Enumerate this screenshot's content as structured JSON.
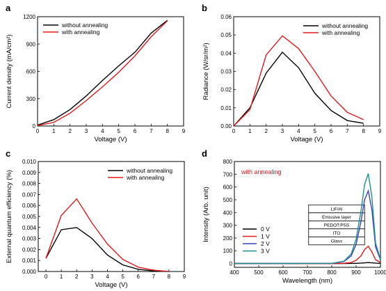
{
  "chart_data": [
    {
      "panel": "a",
      "type": "line",
      "xlabel": "Voltage (V)",
      "ylabel": "Current density (mA/cm²)",
      "xlim": [
        0,
        9
      ],
      "ylim": [
        0,
        1200
      ],
      "xticks": [
        0,
        1,
        2,
        3,
        4,
        5,
        6,
        7,
        8,
        9
      ],
      "yticks": [
        0,
        300,
        600,
        900,
        1200
      ],
      "legend": "top-left",
      "series": [
        {
          "name": "without annealing",
          "color": "#000000",
          "x": [
            0,
            1,
            2,
            3,
            4,
            5,
            6,
            7,
            8
          ],
          "y": [
            10,
            70,
            180,
            330,
            500,
            660,
            810,
            1020,
            1160
          ]
        },
        {
          "name": "with annealing",
          "color": "#e31a1c",
          "x": [
            0,
            1,
            2,
            3,
            4,
            5,
            6,
            7,
            8
          ],
          "y": [
            5,
            40,
            140,
            280,
            430,
            590,
            770,
            980,
            1155
          ]
        }
      ]
    },
    {
      "panel": "b",
      "type": "line",
      "xlabel": "Voltage (V)",
      "ylabel": "Radiance (W/sr/m²)",
      "xlim": [
        0,
        9
      ],
      "ylim": [
        0,
        0.06
      ],
      "xticks": [
        0,
        1,
        2,
        3,
        4,
        5,
        6,
        7,
        8,
        9
      ],
      "yticks": [
        "0.00",
        "0.01",
        "0.02",
        "0.03",
        "0.04",
        "0.05",
        "0.06"
      ],
      "legend": "top-right",
      "series": [
        {
          "name": "without annealing",
          "color": "#000000",
          "x": [
            0,
            1,
            2,
            3,
            4,
            5,
            6,
            7,
            8
          ],
          "y": [
            0.0,
            0.01,
            0.029,
            0.0405,
            0.032,
            0.018,
            0.0085,
            0.003,
            0.0015
          ]
        },
        {
          "name": "with annealing",
          "color": "#e31a1c",
          "x": [
            0,
            1,
            2,
            3,
            4,
            5,
            6,
            7,
            8
          ],
          "y": [
            0.0,
            0.009,
            0.039,
            0.0495,
            0.0425,
            0.03,
            0.0165,
            0.0075,
            0.0035
          ]
        }
      ]
    },
    {
      "panel": "c",
      "type": "line",
      "xlabel": "Voltage (V)",
      "ylabel": "External quantum efficiency (%)",
      "xlim": [
        -0.5,
        9
      ],
      "ylim": [
        0,
        0.01
      ],
      "xticks": [
        0,
        1,
        2,
        3,
        4,
        5,
        6,
        7,
        8,
        9
      ],
      "yticks": [
        "0.000",
        "0.001",
        "0.002",
        "0.003",
        "0.004",
        "0.005",
        "0.006",
        "0.007",
        "0.008",
        "0.009",
        "0.010"
      ],
      "legend": "top-right",
      "series": [
        {
          "name": "without annealing",
          "color": "#000000",
          "x": [
            0,
            1,
            2,
            3,
            4,
            5,
            6,
            7,
            8
          ],
          "y": [
            0.0012,
            0.0038,
            0.004,
            0.003,
            0.0015,
            0.0006,
            0.0002,
            5e-05,
            0.0
          ]
        },
        {
          "name": "with annealing",
          "color": "#e31a1c",
          "x": [
            0,
            1,
            2,
            3,
            4,
            5,
            6,
            7,
            8
          ],
          "y": [
            0.0012,
            0.0051,
            0.0066,
            0.0044,
            0.0025,
            0.0011,
            0.0004,
            0.00012,
            0.0
          ]
        }
      ]
    },
    {
      "panel": "d",
      "type": "line",
      "xlabel": "Wavelength (nm)",
      "ylabel": "Intensity (Arb. unit)",
      "annotation": "with annealing",
      "xlim": [
        400,
        1000
      ],
      "ylim": [
        -30,
        800
      ],
      "xticks": [
        400,
        500,
        600,
        700,
        800,
        900,
        1000
      ],
      "yticks": [
        0,
        100,
        200,
        300,
        400,
        500,
        600,
        700,
        800
      ],
      "legend": "bottom-left",
      "series": [
        {
          "name": "0 V",
          "color": "#000000",
          "x": [
            400,
            800,
            850,
            900,
            920,
            940,
            950,
            960,
            980,
            1000
          ],
          "y": [
            0,
            0,
            0,
            1,
            3,
            6,
            8,
            6,
            3,
            1
          ]
        },
        {
          "name": "1 V",
          "color": "#e31a1c",
          "x": [
            400,
            800,
            850,
            880,
            900,
            920,
            935,
            950,
            965,
            980,
            1000
          ],
          "y": [
            0,
            0,
            2,
            8,
            25,
            60,
            110,
            135,
            90,
            30,
            8
          ]
        },
        {
          "name": "2 V",
          "color": "#3f3fbf",
          "x": [
            400,
            800,
            850,
            880,
            900,
            920,
            935,
            950,
            965,
            980,
            1000
          ],
          "y": [
            0,
            1,
            15,
            60,
            150,
            330,
            500,
            570,
            420,
            130,
            30
          ]
        },
        {
          "name": "3 V",
          "color": "#1f8f8f",
          "x": [
            400,
            800,
            850,
            880,
            900,
            920,
            935,
            950,
            965,
            980,
            1000
          ],
          "y": [
            0,
            1,
            18,
            75,
            190,
            410,
            620,
            705,
            520,
            160,
            35
          ]
        }
      ],
      "inset_layers": [
        "LiF/Al",
        "Emissive layer",
        "PEDOT:PSS",
        "ITO",
        "Glass"
      ]
    }
  ]
}
